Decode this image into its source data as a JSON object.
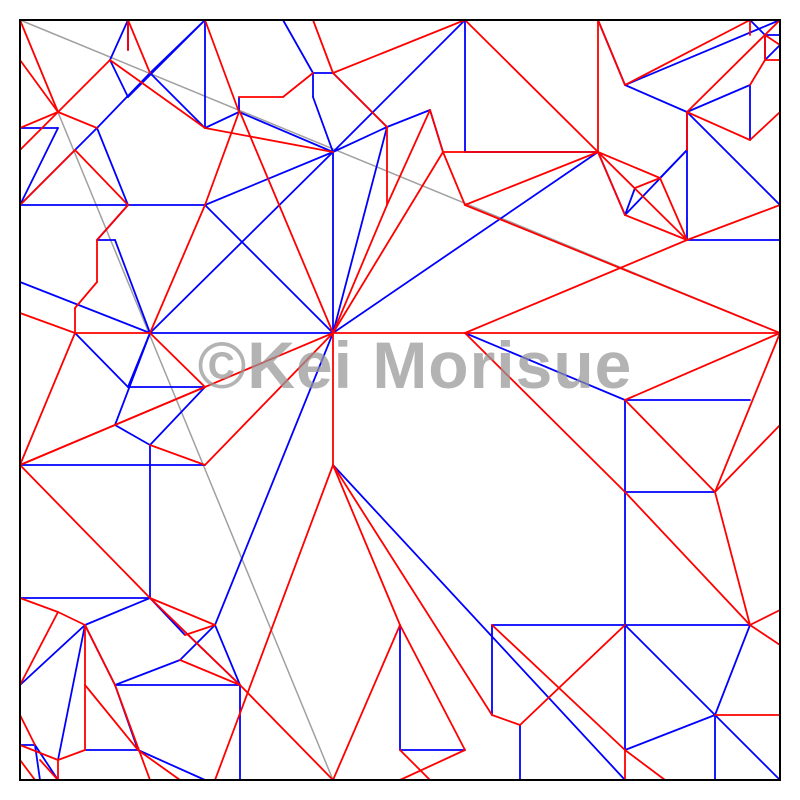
{
  "watermark": "©Kei Morisue",
  "colors": {
    "mountain": "#ff0000",
    "valley": "#0000ff",
    "auxiliary": "#a0a0a0",
    "border": "#000000",
    "background": "#ffffff"
  }
}
